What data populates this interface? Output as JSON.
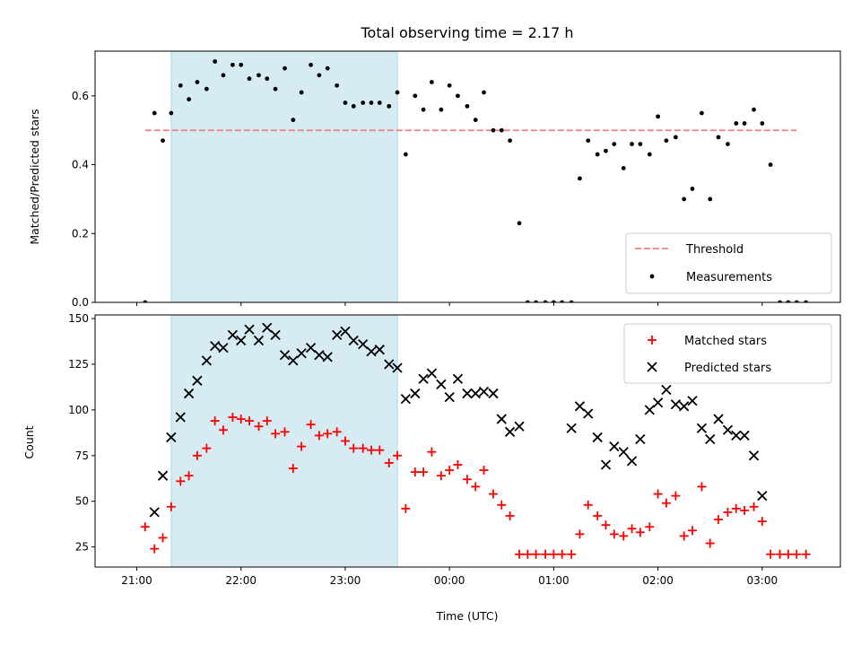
{
  "chart_data": {
    "type": "scatter",
    "title": "Total observing time = 2.17 h",
    "xlabel": "Time (UTC)",
    "x_unit": "hours since 21:00 UTC (labels show wall-clock time)",
    "x_range": [
      -0.4,
      6.75
    ],
    "x_ticks": [
      {
        "v": 0,
        "label": "21:00"
      },
      {
        "v": 1,
        "label": "22:00"
      },
      {
        "v": 2,
        "label": "23:00"
      },
      {
        "v": 3,
        "label": "00:00"
      },
      {
        "v": 4,
        "label": "01:00"
      },
      {
        "v": 5,
        "label": "02:00"
      },
      {
        "v": 6,
        "label": "03:00"
      }
    ],
    "highlight": {
      "x0": 0.33,
      "x1": 2.5,
      "color": "#add8e6"
    },
    "panels": [
      {
        "id": "ratio",
        "ylabel": "Matched/Predicted stars",
        "ylim": [
          0,
          0.73
        ],
        "yticks": [
          {
            "v": 0,
            "label": "0.0"
          },
          {
            "v": 0.2,
            "label": "0.2"
          },
          {
            "v": 0.4,
            "label": "0.4"
          },
          {
            "v": 0.6,
            "label": "0.6"
          }
        ],
        "threshold": {
          "value": 0.5,
          "x0": 0.08,
          "x1": 6.33,
          "color": "#f08080",
          "label": "Threshold"
        },
        "measurements": {
          "label": "Measurements",
          "color": "#000000",
          "points": [
            [
              0.08,
              0.0
            ],
            [
              0.17,
              0.55
            ],
            [
              0.25,
              0.47
            ],
            [
              0.33,
              0.55
            ],
            [
              0.42,
              0.63
            ],
            [
              0.5,
              0.59
            ],
            [
              0.58,
              0.64
            ],
            [
              0.67,
              0.62
            ],
            [
              0.75,
              0.7
            ],
            [
              0.83,
              0.66
            ],
            [
              0.92,
              0.69
            ],
            [
              1.0,
              0.69
            ],
            [
              1.08,
              0.65
            ],
            [
              1.17,
              0.66
            ],
            [
              1.25,
              0.65
            ],
            [
              1.33,
              0.62
            ],
            [
              1.42,
              0.68
            ],
            [
              1.5,
              0.53
            ],
            [
              1.58,
              0.61
            ],
            [
              1.67,
              0.69
            ],
            [
              1.75,
              0.66
            ],
            [
              1.83,
              0.68
            ],
            [
              1.92,
              0.63
            ],
            [
              2.0,
              0.58
            ],
            [
              2.08,
              0.57
            ],
            [
              2.17,
              0.58
            ],
            [
              2.25,
              0.58
            ],
            [
              2.33,
              0.58
            ],
            [
              2.42,
              0.57
            ],
            [
              2.5,
              0.61
            ],
            [
              2.58,
              0.43
            ],
            [
              2.67,
              0.6
            ],
            [
              2.75,
              0.56
            ],
            [
              2.83,
              0.64
            ],
            [
              2.92,
              0.56
            ],
            [
              3.0,
              0.63
            ],
            [
              3.08,
              0.6
            ],
            [
              3.17,
              0.57
            ],
            [
              3.25,
              0.53
            ],
            [
              3.33,
              0.61
            ],
            [
              3.42,
              0.5
            ],
            [
              3.5,
              0.5
            ],
            [
              3.58,
              0.47
            ],
            [
              3.67,
              0.23
            ],
            [
              3.75,
              0.0
            ],
            [
              3.83,
              0.0
            ],
            [
              3.92,
              0.0
            ],
            [
              4.0,
              0.0
            ],
            [
              4.08,
              0.0
            ],
            [
              4.17,
              0.0
            ],
            [
              4.25,
              0.36
            ],
            [
              4.33,
              0.47
            ],
            [
              4.42,
              0.43
            ],
            [
              4.5,
              0.44
            ],
            [
              4.58,
              0.46
            ],
            [
              4.67,
              0.39
            ],
            [
              4.75,
              0.46
            ],
            [
              4.83,
              0.46
            ],
            [
              4.92,
              0.43
            ],
            [
              5.0,
              0.54
            ],
            [
              5.08,
              0.47
            ],
            [
              5.17,
              0.48
            ],
            [
              5.25,
              0.3
            ],
            [
              5.33,
              0.33
            ],
            [
              5.42,
              0.55
            ],
            [
              5.5,
              0.3
            ],
            [
              5.58,
              0.48
            ],
            [
              5.67,
              0.46
            ],
            [
              5.75,
              0.52
            ],
            [
              5.83,
              0.52
            ],
            [
              5.92,
              0.56
            ],
            [
              6.0,
              0.52
            ],
            [
              6.08,
              0.4
            ],
            [
              6.17,
              0.0
            ],
            [
              6.25,
              0.0
            ],
            [
              6.33,
              0.0
            ],
            [
              6.42,
              0.0
            ]
          ]
        }
      },
      {
        "id": "count",
        "ylabel": "Count",
        "ylim": [
          14,
          152
        ],
        "yticks": [
          {
            "v": 25,
            "label": "25"
          },
          {
            "v": 50,
            "label": "50"
          },
          {
            "v": 75,
            "label": "75"
          },
          {
            "v": 100,
            "label": "100"
          },
          {
            "v": 125,
            "label": "125"
          },
          {
            "v": 150,
            "label": "150"
          }
        ],
        "series": [
          {
            "name": "Matched stars",
            "marker": "plus",
            "color": "#ff0000",
            "points": [
              [
                0.08,
                36
              ],
              [
                0.17,
                24
              ],
              [
                0.25,
                30
              ],
              [
                0.33,
                47
              ],
              [
                0.42,
                61
              ],
              [
                0.5,
                64
              ],
              [
                0.58,
                75
              ],
              [
                0.67,
                79
              ],
              [
                0.75,
                94
              ],
              [
                0.83,
                89
              ],
              [
                0.92,
                96
              ],
              [
                1.0,
                95
              ],
              [
                1.08,
                94
              ],
              [
                1.17,
                91
              ],
              [
                1.25,
                94
              ],
              [
                1.33,
                87
              ],
              [
                1.42,
                88
              ],
              [
                1.5,
                68
              ],
              [
                1.58,
                80
              ],
              [
                1.67,
                92
              ],
              [
                1.75,
                86
              ],
              [
                1.83,
                87
              ],
              [
                1.92,
                88
              ],
              [
                2.0,
                83
              ],
              [
                2.08,
                79
              ],
              [
                2.17,
                79
              ],
              [
                2.25,
                78
              ],
              [
                2.33,
                78
              ],
              [
                2.42,
                71
              ],
              [
                2.5,
                75
              ],
              [
                2.58,
                46
              ],
              [
                2.67,
                66
              ],
              [
                2.75,
                66
              ],
              [
                2.83,
                77
              ],
              [
                2.92,
                64
              ],
              [
                3.0,
                67
              ],
              [
                3.08,
                70
              ],
              [
                3.17,
                62
              ],
              [
                3.25,
                58
              ],
              [
                3.33,
                67
              ],
              [
                3.42,
                54
              ],
              [
                3.5,
                48
              ],
              [
                3.58,
                42
              ],
              [
                3.67,
                21
              ],
              [
                3.75,
                21
              ],
              [
                3.83,
                21
              ],
              [
                3.92,
                21
              ],
              [
                4.0,
                21
              ],
              [
                4.08,
                21
              ],
              [
                4.17,
                21
              ],
              [
                4.25,
                32
              ],
              [
                4.33,
                48
              ],
              [
                4.42,
                42
              ],
              [
                4.5,
                37
              ],
              [
                4.58,
                32
              ],
              [
                4.67,
                31
              ],
              [
                4.75,
                35
              ],
              [
                4.83,
                33
              ],
              [
                4.92,
                36
              ],
              [
                5.0,
                54
              ],
              [
                5.08,
                49
              ],
              [
                5.17,
                53
              ],
              [
                5.25,
                31
              ],
              [
                5.33,
                34
              ],
              [
                5.42,
                58
              ],
              [
                5.5,
                27
              ],
              [
                5.58,
                40
              ],
              [
                5.67,
                44
              ],
              [
                5.75,
                46
              ],
              [
                5.83,
                45
              ],
              [
                5.92,
                47
              ],
              [
                6.0,
                39
              ],
              [
                6.08,
                21
              ],
              [
                6.17,
                21
              ],
              [
                6.25,
                21
              ],
              [
                6.33,
                21
              ],
              [
                6.42,
                21
              ]
            ]
          },
          {
            "name": "Predicted stars",
            "marker": "x",
            "color": "#000000",
            "points": [
              [
                0.17,
                44
              ],
              [
                0.25,
                64
              ],
              [
                0.33,
                85
              ],
              [
                0.42,
                96
              ],
              [
                0.5,
                109
              ],
              [
                0.58,
                116
              ],
              [
                0.67,
                127
              ],
              [
                0.75,
                135
              ],
              [
                0.83,
                134
              ],
              [
                0.92,
                141
              ],
              [
                1.0,
                138
              ],
              [
                1.08,
                144
              ],
              [
                1.17,
                138
              ],
              [
                1.25,
                145
              ],
              [
                1.33,
                141
              ],
              [
                1.42,
                130
              ],
              [
                1.5,
                127
              ],
              [
                1.58,
                131
              ],
              [
                1.67,
                134
              ],
              [
                1.75,
                130
              ],
              [
                1.83,
                129
              ],
              [
                1.92,
                141
              ],
              [
                2.0,
                143
              ],
              [
                2.08,
                138
              ],
              [
                2.17,
                136
              ],
              [
                2.25,
                132
              ],
              [
                2.33,
                133
              ],
              [
                2.42,
                125
              ],
              [
                2.5,
                123
              ],
              [
                2.58,
                106
              ],
              [
                2.67,
                109
              ],
              [
                2.75,
                117
              ],
              [
                2.83,
                120
              ],
              [
                2.92,
                114
              ],
              [
                3.0,
                107
              ],
              [
                3.08,
                117
              ],
              [
                3.17,
                109
              ],
              [
                3.25,
                109
              ],
              [
                3.33,
                110
              ],
              [
                3.42,
                109
              ],
              [
                3.5,
                95
              ],
              [
                3.58,
                88
              ],
              [
                3.67,
                91
              ],
              [
                4.17,
                90
              ],
              [
                4.25,
                102
              ],
              [
                4.33,
                98
              ],
              [
                4.42,
                85
              ],
              [
                4.5,
                70
              ],
              [
                4.58,
                80
              ],
              [
                4.67,
                77
              ],
              [
                4.75,
                72
              ],
              [
                4.83,
                84
              ],
              [
                4.92,
                100
              ],
              [
                5.0,
                104
              ],
              [
                5.08,
                111
              ],
              [
                5.17,
                103
              ],
              [
                5.25,
                102
              ],
              [
                5.33,
                105
              ],
              [
                5.42,
                90
              ],
              [
                5.5,
                84
              ],
              [
                5.58,
                95
              ],
              [
                5.67,
                89
              ],
              [
                5.75,
                86
              ],
              [
                5.83,
                86
              ],
              [
                5.92,
                75
              ],
              [
                6.0,
                53
              ]
            ]
          }
        ]
      }
    ]
  }
}
